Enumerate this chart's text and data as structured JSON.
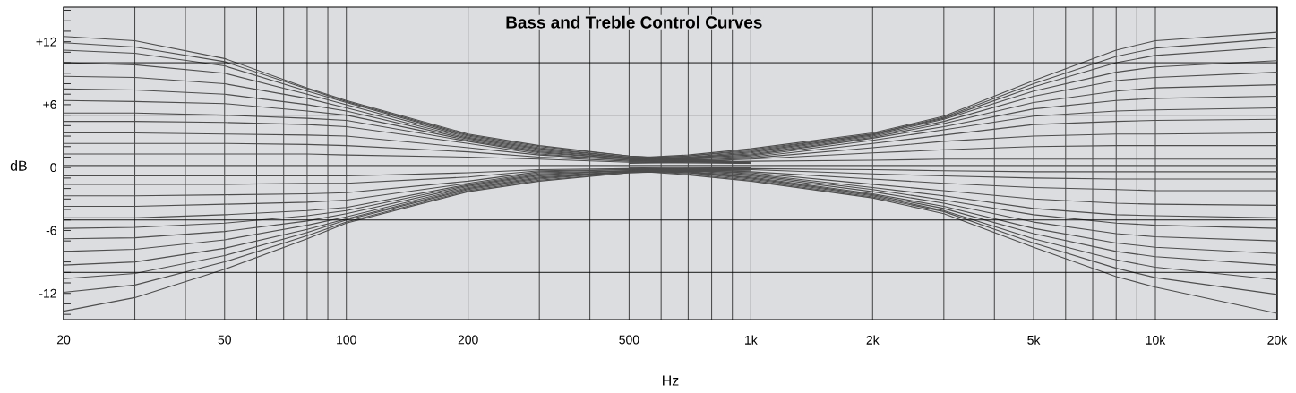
{
  "chart_data": {
    "type": "line",
    "title": "Bass and Treble Control Curves",
    "xlabel": "Hz",
    "ylabel": "dB",
    "log": "x",
    "grid": "x",
    "xlim": [
      20,
      20000
    ],
    "ylim": [
      -14.5,
      15.3
    ],
    "xticks": [
      20,
      {
        "value": 30,
        "label": null
      },
      {
        "value": 40,
        "label": null
      },
      50,
      {
        "value": 60,
        "label": null
      },
      {
        "value": 70,
        "label": null
      },
      {
        "value": 80,
        "label": null
      },
      {
        "value": 90,
        "label": null
      },
      100,
      200,
      {
        "value": 300,
        "label": null
      },
      {
        "value": 400,
        "label": null
      },
      500,
      {
        "value": 600,
        "label": null
      },
      {
        "value": 700,
        "label": null
      },
      {
        "value": 800,
        "label": null
      },
      {
        "value": 900,
        "label": null
      },
      {
        "value": 1000,
        "label": "1k"
      },
      {
        "value": 2000,
        "label": "2k"
      },
      {
        "value": 3000,
        "label": null
      },
      {
        "value": 4000,
        "label": null
      },
      {
        "value": 5000,
        "label": "5k"
      },
      {
        "value": 6000,
        "label": null
      },
      {
        "value": 7000,
        "label": null
      },
      {
        "value": 8000,
        "label": null
      },
      {
        "value": 9000,
        "label": null
      },
      {
        "value": 10000,
        "label": "10k"
      },
      {
        "value": 20000,
        "label": "20k"
      }
    ],
    "yticks": [
      {
        "value": -14,
        "label": null
      },
      {
        "value": -13,
        "label": null
      },
      {
        "value": -12,
        "label": "-12"
      },
      {
        "value": -11,
        "label": null
      },
      {
        "value": -10,
        "label": null
      },
      {
        "value": -9,
        "label": null
      },
      {
        "value": -8,
        "label": null
      },
      {
        "value": -7,
        "label": null
      },
      {
        "value": -6,
        "label": "-6"
      },
      {
        "value": -5,
        "label": null
      },
      {
        "value": -4,
        "label": null
      },
      {
        "value": -3,
        "label": null
      },
      {
        "value": -2,
        "label": null
      },
      {
        "value": -1,
        "label": null
      },
      0,
      {
        "value": 1,
        "label": null
      },
      {
        "value": 2,
        "label": null
      },
      {
        "value": 3,
        "label": null
      },
      {
        "value": 4,
        "label": null
      },
      {
        "value": 5,
        "label": null
      },
      {
        "value": 6,
        "label": "+6"
      },
      {
        "value": 7,
        "label": null
      },
      {
        "value": 8,
        "label": null
      },
      {
        "value": 9,
        "label": null
      },
      {
        "value": 10,
        "label": null
      },
      {
        "value": 11,
        "label": null
      },
      {
        "value": 12,
        "label": "+12"
      },
      {
        "value": 13,
        "label": null
      },
      {
        "value": 14,
        "label": null
      },
      {
        "value": 15,
        "label": null
      }
    ],
    "ref_lines": [
      {
        "axis": "y",
        "value": 10,
        "color": "#000000"
      },
      {
        "axis": "y",
        "value": 5,
        "color": "#000000"
      },
      {
        "axis": "y",
        "value": -5,
        "color": "#000000"
      },
      {
        "axis": "y",
        "value": -10,
        "color": "#000000"
      }
    ],
    "series": [
      {
        "color": "#4d4d4d",
        "x": [
          20,
          30,
          50,
          80,
          100,
          200,
          300,
          500,
          1000
        ],
        "values": [
          12.5,
          12.1,
          10.4,
          7.6,
          6.4,
          3.2,
          2.1,
          1.1,
          0.5
        ]
      },
      {
        "color": "#4d4d4d",
        "x": [
          20,
          30,
          50,
          80,
          100,
          200,
          300,
          500,
          1000
        ],
        "values": [
          11.9,
          11.5,
          10.1,
          7.5,
          6.3,
          3.1,
          2.0,
          1.1,
          0.4
        ]
      },
      {
        "color": "#4d4d4d",
        "x": [
          20,
          30,
          50,
          80,
          100,
          200,
          300,
          500,
          1000
        ],
        "values": [
          11.2,
          10.9,
          9.7,
          7.3,
          6.2,
          3.0,
          1.9,
          1.0,
          0.5
        ]
      },
      {
        "color": "#4d4d4d",
        "x": [
          20,
          30,
          50,
          80,
          100,
          200,
          300,
          500,
          1000
        ],
        "values": [
          10.0,
          9.8,
          9.0,
          7.0,
          6.0,
          2.9,
          1.8,
          1.0,
          0.4
        ]
      },
      {
        "color": "#4d4d4d",
        "x": [
          20,
          30,
          50,
          80,
          100,
          200,
          300,
          500,
          1000
        ],
        "values": [
          8.7,
          8.6,
          8.0,
          6.6,
          5.7,
          2.8,
          1.7,
          0.9,
          0.5
        ]
      },
      {
        "color": "#4d4d4d",
        "x": [
          20,
          30,
          50,
          80,
          100,
          200,
          300,
          500,
          1000
        ],
        "values": [
          7.5,
          7.4,
          7.0,
          6.0,
          5.4,
          2.7,
          1.6,
          0.9,
          0.4
        ]
      },
      {
        "color": "#4d4d4d",
        "x": [
          20,
          30,
          50,
          80,
          100,
          200,
          300,
          500,
          1000
        ],
        "values": [
          6.4,
          6.3,
          6.1,
          5.4,
          5.0,
          2.6,
          1.5,
          0.8,
          0.5
        ]
      },
      {
        "color": "#4d4d4d",
        "x": [
          20,
          30,
          50,
          80,
          100,
          200,
          300,
          500,
          1000
        ],
        "values": [
          5.2,
          5.2,
          5.0,
          4.7,
          4.5,
          2.5,
          1.4,
          0.8,
          0.4
        ]
      },
      {
        "color": "#4d4d4d",
        "x": [
          20,
          30,
          50,
          80,
          100,
          200,
          300,
          500,
          1000
        ],
        "values": [
          4.4,
          4.4,
          4.3,
          4.1,
          3.9,
          2.3,
          1.3,
          0.7,
          0.5
        ]
      },
      {
        "color": "#4d4d4d",
        "x": [
          20,
          30,
          50,
          80,
          100,
          200,
          300,
          500,
          1000
        ],
        "values": [
          3.3,
          3.3,
          3.2,
          3.1,
          3.0,
          1.9,
          1.2,
          0.7,
          0.4
        ]
      },
      {
        "color": "#4d4d4d",
        "x": [
          20,
          30,
          50,
          80,
          100,
          200,
          300,
          500,
          1000
        ],
        "values": [
          2.3,
          2.3,
          2.3,
          2.2,
          2.1,
          1.5,
          1.0,
          0.6,
          0.5
        ]
      },
      {
        "color": "#4d4d4d",
        "x": [
          20,
          30,
          50,
          80,
          100,
          200,
          300,
          500,
          1000
        ],
        "values": [
          1.3,
          1.3,
          1.3,
          1.3,
          1.2,
          1.0,
          0.8,
          0.5,
          0.4
        ]
      },
      {
        "color": "#4d4d4d",
        "x": [
          20,
          20000
        ],
        "values": [
          0.2,
          0.2
        ]
      },
      {
        "color": "#4d4d4d",
        "x": [
          20,
          30,
          50,
          80,
          100,
          200,
          300,
          500,
          1000
        ],
        "values": [
          -0.8,
          -0.8,
          -0.8,
          -0.8,
          -0.8,
          -0.5,
          -0.2,
          -0.1,
          0
        ]
      },
      {
        "color": "#4d4d4d",
        "x": [
          20,
          30,
          50,
          80,
          100,
          200,
          300,
          500,
          1000
        ],
        "values": [
          -1.6,
          -1.6,
          -1.6,
          -1.5,
          -1.5,
          -0.9,
          -0.3,
          -0.2,
          0
        ]
      },
      {
        "color": "#4d4d4d",
        "x": [
          20,
          30,
          50,
          80,
          100,
          200,
          300,
          500,
          1000
        ],
        "values": [
          -2.7,
          -2.7,
          -2.6,
          -2.5,
          -2.4,
          -1.3,
          -0.4,
          -0.2,
          -0.1
        ]
      },
      {
        "color": "#4d4d4d",
        "x": [
          20,
          30,
          50,
          80,
          100,
          200,
          300,
          500,
          1000
        ],
        "values": [
          -3.7,
          -3.7,
          -3.5,
          -3.3,
          -3.1,
          -1.5,
          -0.5,
          -0.3,
          0
        ]
      },
      {
        "color": "#4d4d4d",
        "x": [
          20,
          30,
          50,
          80,
          100,
          200,
          300,
          500,
          1000
        ],
        "values": [
          -4.8,
          -4.8,
          -4.5,
          -4.1,
          -3.8,
          -1.6,
          -0.6,
          -0.3,
          -0.1
        ]
      },
      {
        "color": "#4d4d4d",
        "x": [
          20,
          30,
          50,
          80,
          100,
          200,
          300,
          500,
          1000
        ],
        "values": [
          -5.8,
          -5.7,
          -5.3,
          -4.6,
          -4.1,
          -1.7,
          -0.7,
          -0.3,
          -0.2
        ]
      },
      {
        "color": "#4d4d4d",
        "x": [
          20,
          30,
          50,
          80,
          100,
          200,
          300,
          500,
          1000
        ],
        "values": [
          -6.8,
          -6.7,
          -6.1,
          -5.1,
          -4.4,
          -1.8,
          -0.8,
          -0.4,
          0
        ]
      },
      {
        "color": "#4d4d4d",
        "x": [
          20,
          30,
          50,
          80,
          100,
          200,
          300,
          500,
          1000
        ],
        "values": [
          -8.0,
          -7.8,
          -6.9,
          -5.5,
          -4.7,
          -1.9,
          -0.9,
          -0.4,
          -0.1
        ]
      },
      {
        "color": "#4d4d4d",
        "x": [
          20,
          30,
          50,
          80,
          100,
          200,
          300,
          500,
          1000
        ],
        "values": [
          -9.3,
          -9.0,
          -7.7,
          -5.9,
          -4.9,
          -2.0,
          -1.0,
          -0.4,
          -0.2
        ]
      },
      {
        "color": "#4d4d4d",
        "x": [
          20,
          30,
          50,
          80,
          100,
          200,
          300,
          500,
          1000
        ],
        "values": [
          -10.6,
          -10.1,
          -8.4,
          -6.2,
          -5.0,
          -2.1,
          -1.1,
          -0.4,
          -0.3
        ]
      },
      {
        "color": "#4d4d4d",
        "x": [
          20,
          30,
          50,
          80,
          100,
          200,
          300,
          500,
          1000
        ],
        "values": [
          -11.9,
          -11.2,
          -9.0,
          -6.5,
          -5.2,
          -2.2,
          -1.2,
          -0.5,
          -0.1
        ]
      },
      {
        "color": "#4d4d4d",
        "x": [
          20,
          30,
          50,
          80,
          100,
          200,
          300,
          500,
          1000
        ],
        "values": [
          -13.7,
          -12.4,
          -9.7,
          -6.8,
          -5.3,
          -2.3,
          -1.3,
          -0.5,
          -0.2
        ]
      },
      {
        "color": "#4d4d4d",
        "x": [
          500,
          700,
          1000,
          2000,
          3000,
          5000,
          8000,
          10000,
          20000
        ],
        "values": [
          0.9,
          1.2,
          1.8,
          3.3,
          4.9,
          8.3,
          11.2,
          12.1,
          12.9
        ]
      },
      {
        "color": "#4d4d4d",
        "x": [
          500,
          700,
          1000,
          2000,
          3000,
          5000,
          8000,
          10000,
          20000
        ],
        "values": [
          0.9,
          1.1,
          1.7,
          3.2,
          4.8,
          8.0,
          10.6,
          11.4,
          12.3
        ]
      },
      {
        "color": "#4d4d4d",
        "x": [
          500,
          700,
          1000,
          2000,
          3000,
          5000,
          8000,
          10000,
          20000
        ],
        "values": [
          0.8,
          1.1,
          1.6,
          3.2,
          4.7,
          7.7,
          10.0,
          10.7,
          11.5
        ]
      },
      {
        "color": "#4d4d4d",
        "x": [
          500,
          700,
          1000,
          2000,
          3000,
          5000,
          8000,
          10000,
          20000
        ],
        "values": [
          0.8,
          1.0,
          1.5,
          3.1,
          4.6,
          7.3,
          9.1,
          9.6,
          10.2
        ]
      },
      {
        "color": "#4d4d4d",
        "x": [
          500,
          700,
          1000,
          2000,
          3000,
          5000,
          8000,
          10000,
          20000
        ],
        "values": [
          0.8,
          0.9,
          1.4,
          3.0,
          4.4,
          6.8,
          8.3,
          8.6,
          9.1
        ]
      },
      {
        "color": "#4d4d4d",
        "x": [
          500,
          700,
          1000,
          2000,
          3000,
          5000,
          8000,
          10000,
          20000
        ],
        "values": [
          0.7,
          1.0,
          1.3,
          2.9,
          4.2,
          6.2,
          7.3,
          7.6,
          7.9
        ]
      },
      {
        "color": "#4d4d4d",
        "x": [
          500,
          700,
          1000,
          2000,
          3000,
          5000,
          8000,
          10000,
          20000
        ],
        "values": [
          0.7,
          0.9,
          1.2,
          2.8,
          3.9,
          5.6,
          6.4,
          6.6,
          6.8
        ]
      },
      {
        "color": "#4d4d4d",
        "x": [
          500,
          700,
          1000,
          2000,
          3000,
          5000,
          8000,
          10000,
          20000
        ],
        "values": [
          0.7,
          0.8,
          1.1,
          2.6,
          3.6,
          4.9,
          5.4,
          5.5,
          5.7
        ]
      },
      {
        "color": "#4d4d4d",
        "x": [
          500,
          700,
          1000,
          2000,
          3000,
          5000,
          8000,
          10000,
          20000
        ],
        "values": [
          0.6,
          0.8,
          1.0,
          2.3,
          3.1,
          4.1,
          4.4,
          4.5,
          4.6
        ]
      },
      {
        "color": "#4d4d4d",
        "x": [
          500,
          700,
          1000,
          2000,
          3000,
          5000,
          8000,
          10000,
          20000
        ],
        "values": [
          0.6,
          0.7,
          0.9,
          1.9,
          2.5,
          3.0,
          3.2,
          3.2,
          3.3
        ]
      },
      {
        "color": "#4d4d4d",
        "x": [
          500,
          700,
          1000,
          2000,
          3000,
          5000,
          8000,
          10000,
          20000
        ],
        "values": [
          0.5,
          0.6,
          0.8,
          1.4,
          1.7,
          2.0,
          2.1,
          2.1,
          2.1
        ]
      },
      {
        "color": "#4d4d4d",
        "x": [
          500,
          700,
          1000,
          2000,
          3000,
          5000,
          8000,
          10000,
          20000
        ],
        "values": [
          0.4,
          0.5,
          0.6,
          0.7,
          0.8,
          0.8,
          0.8,
          0.8,
          0.8
        ]
      },
      {
        "color": "#4d4d4d",
        "x": [
          500,
          700,
          1000,
          2000,
          3000,
          5000,
          8000,
          10000,
          20000
        ],
        "values": [
          -0.3,
          -0.7,
          -1.3,
          -2.9,
          -4.4,
          -7.6,
          -10.4,
          -11.4,
          -13.9
        ]
      },
      {
        "color": "#4d4d4d",
        "x": [
          500,
          700,
          1000,
          2000,
          3000,
          5000,
          8000,
          10000,
          20000
        ],
        "values": [
          -0.3,
          -0.6,
          -1.2,
          -2.8,
          -4.2,
          -7.2,
          -9.6,
          -10.5,
          -12.1
        ]
      },
      {
        "color": "#4d4d4d",
        "x": [
          500,
          700,
          1000,
          2000,
          3000,
          5000,
          8000,
          10000,
          20000
        ],
        "values": [
          -0.3,
          -0.5,
          -1.1,
          -2.7,
          -4.1,
          -6.8,
          -8.8,
          -9.5,
          -10.7
        ]
      },
      {
        "color": "#4d4d4d",
        "x": [
          500,
          700,
          1000,
          2000,
          3000,
          5000,
          8000,
          10000,
          20000
        ],
        "values": [
          -0.3,
          -0.4,
          -1.0,
          -2.6,
          -3.9,
          -6.3,
          -8.0,
          -8.5,
          -9.3
        ]
      },
      {
        "color": "#4d4d4d",
        "x": [
          500,
          700,
          1000,
          2000,
          3000,
          5000,
          8000,
          10000,
          20000
        ],
        "values": [
          -0.2,
          -0.5,
          -0.9,
          -2.5,
          -3.7,
          -5.8,
          -7.2,
          -7.6,
          -8.2
        ]
      },
      {
        "color": "#4d4d4d",
        "x": [
          500,
          700,
          1000,
          2000,
          3000,
          5000,
          8000,
          10000,
          20000
        ],
        "values": [
          -0.2,
          -0.4,
          -0.8,
          -2.3,
          -3.4,
          -5.2,
          -6.3,
          -6.6,
          -7.0
        ]
      },
      {
        "color": "#4d4d4d",
        "x": [
          500,
          700,
          1000,
          2000,
          3000,
          5000,
          8000,
          10000,
          20000
        ],
        "values": [
          -0.2,
          -0.3,
          -0.7,
          -2.1,
          -3.1,
          -4.5,
          -5.3,
          -5.5,
          -5.8
        ]
      },
      {
        "color": "#4d4d4d",
        "x": [
          500,
          700,
          1000,
          2000,
          3000,
          5000,
          8000,
          10000,
          20000
        ],
        "values": [
          -0.2,
          -0.2,
          -0.6,
          -1.9,
          -2.7,
          -3.9,
          -4.5,
          -4.6,
          -4.8
        ]
      },
      {
        "color": "#4d4d4d",
        "x": [
          500,
          700,
          1000,
          2000,
          3000,
          5000,
          8000,
          10000,
          20000
        ],
        "values": [
          -0.1,
          -0.3,
          -0.5,
          -1.6,
          -2.2,
          -3.0,
          -3.4,
          -3.5,
          -3.6
        ]
      },
      {
        "color": "#4d4d4d",
        "x": [
          500,
          700,
          1000,
          2000,
          3000,
          5000,
          8000,
          10000,
          20000
        ],
        "values": [
          -0.1,
          -0.2,
          -0.4,
          -1.1,
          -1.5,
          -1.9,
          -2.1,
          -2.2,
          -2.2
        ]
      },
      {
        "color": "#4d4d4d",
        "x": [
          500,
          700,
          1000,
          2000,
          3000,
          5000,
          8000,
          10000,
          20000
        ],
        "values": [
          -0.1,
          -0.1,
          -0.2,
          -0.6,
          -0.8,
          -1.0,
          -1.1,
          -1.1,
          -1.1
        ]
      },
      {
        "color": "#4d4d4d",
        "x": [
          500,
          700,
          1000,
          2000,
          3000,
          5000,
          8000,
          10000,
          20000
        ],
        "values": [
          0,
          -0.1,
          -0.1,
          -0.2,
          -0.3,
          -0.4,
          -0.4,
          -0.4,
          -0.4
        ]
      }
    ]
  }
}
